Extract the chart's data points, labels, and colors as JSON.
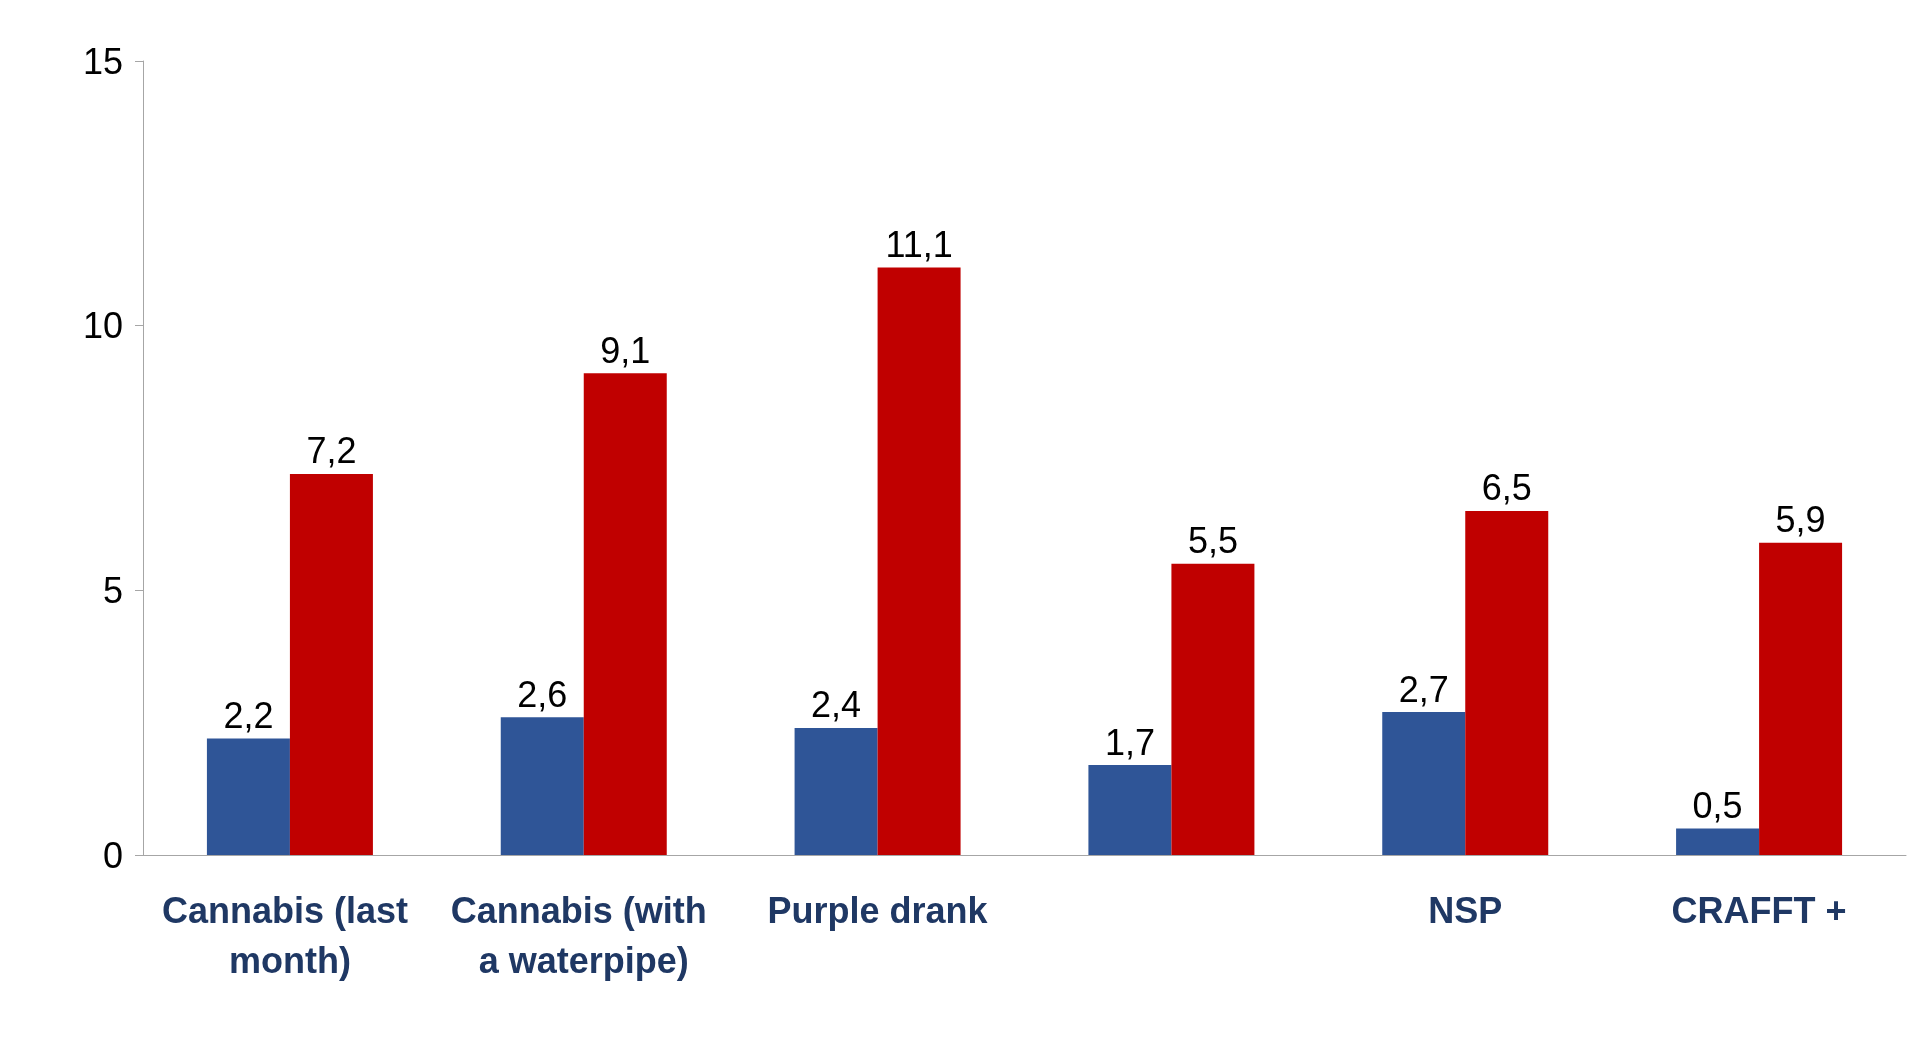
{
  "chart_data": {
    "type": "bar",
    "categories": [
      "Cannabis (last month)",
      "Cannabis (with a waterpipe)",
      "Purple drank",
      null,
      "NSP",
      "CRAFFT +"
    ],
    "series": [
      {
        "color": "#2f5597",
        "values": [
          2.2,
          2.6,
          2.4,
          1.7,
          2.7,
          0.5
        ],
        "value_labels": [
          "2,2",
          "2,6",
          "2,4",
          "1,7",
          "2,7",
          "0,5"
        ]
      },
      {
        "color": "#c00000",
        "values": [
          7.2,
          9.1,
          11.1,
          5.5,
          6.5,
          5.9
        ],
        "value_labels": [
          "7,2",
          "9,1",
          "11,1",
          "5,5",
          "6,5",
          "5,9"
        ]
      }
    ],
    "ylim": [
      0,
      15
    ],
    "yticks": [
      0,
      5,
      10,
      15
    ],
    "grid": false
  }
}
